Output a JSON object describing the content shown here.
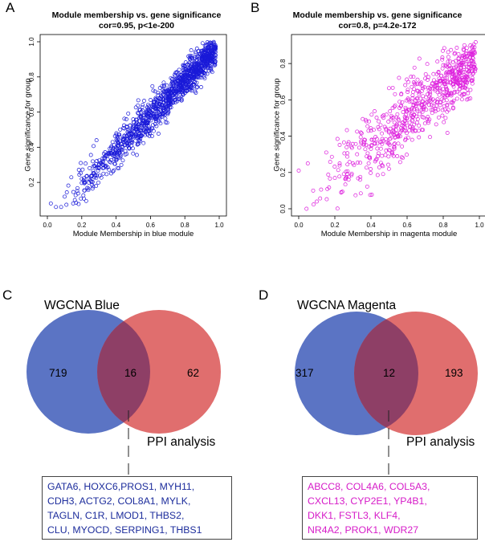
{
  "panels": {
    "a": {
      "letter": "A"
    },
    "b": {
      "letter": "B"
    },
    "c": {
      "letter": "C"
    },
    "d": {
      "letter": "D"
    }
  },
  "chart_data": [
    {
      "type": "scatter",
      "title": "Module membership vs. gene significance",
      "subtitle": "cor=0.95, p<1e-200",
      "xlabel": "Module Membership in blue module",
      "ylabel": "Gene significance for group",
      "xlim": [
        0,
        1
      ],
      "ylim": [
        0.05,
        1.0
      ],
      "xticks": [
        "0.0",
        "0.2",
        "0.4",
        "0.6",
        "0.8",
        "1.0"
      ],
      "yticks": [
        "0.2",
        "0.4",
        "0.6",
        "0.8",
        "1.0"
      ],
      "point_color": "#1a1ad8",
      "n_points": 1200,
      "seed": 7,
      "relation": {
        "slope": 1.0,
        "intercept": -0.02,
        "noise": 0.055,
        "x_min": 0.02,
        "x_max": 0.98
      },
      "sample_points": [
        {
          "x": 0.02,
          "y": 0.08
        },
        {
          "x": 0.05,
          "y": 0.06
        },
        {
          "x": 0.08,
          "y": 0.06
        },
        {
          "x": 0.15,
          "y": 0.08
        },
        {
          "x": 0.16,
          "y": 0.1
        },
        {
          "x": 0.2,
          "y": 0.22
        },
        {
          "x": 0.3,
          "y": 0.28
        },
        {
          "x": 0.4,
          "y": 0.4
        },
        {
          "x": 0.5,
          "y": 0.46
        },
        {
          "x": 0.6,
          "y": 0.58
        },
        {
          "x": 0.7,
          "y": 0.68
        },
        {
          "x": 0.8,
          "y": 0.76
        },
        {
          "x": 0.9,
          "y": 0.86
        },
        {
          "x": 0.97,
          "y": 0.96
        }
      ]
    },
    {
      "type": "scatter",
      "title": "Module membership vs. gene significance",
      "subtitle": "cor=0.8, p=4.2e-172",
      "xlabel": "Module Membership in magenta module",
      "ylabel": "Gene significance for group",
      "xlim": [
        0,
        1
      ],
      "ylim": [
        0.0,
        0.92
      ],
      "xticks": [
        "0.0",
        "0.2",
        "0.4",
        "0.6",
        "0.8",
        "1.0"
      ],
      "yticks": [
        "0.0",
        "0.2",
        "0.4",
        "0.6",
        "0.8"
      ],
      "point_color": "#dd1fdd",
      "n_points": 700,
      "seed": 19,
      "relation": {
        "slope": 0.82,
        "intercept": 0.02,
        "noise": 0.11,
        "x_min": 0.03,
        "x_max": 0.98
      },
      "sample_points": [
        {
          "x": 0.0,
          "y": 0.21
        },
        {
          "x": 0.05,
          "y": 0.25
        },
        {
          "x": 0.08,
          "y": 0.1
        },
        {
          "x": 0.1,
          "y": 0.04
        },
        {
          "x": 0.2,
          "y": 0.17
        },
        {
          "x": 0.3,
          "y": 0.25
        },
        {
          "x": 0.4,
          "y": 0.33
        },
        {
          "x": 0.5,
          "y": 0.42
        },
        {
          "x": 0.6,
          "y": 0.5
        },
        {
          "x": 0.7,
          "y": 0.58
        },
        {
          "x": 0.8,
          "y": 0.66
        },
        {
          "x": 0.9,
          "y": 0.76
        },
        {
          "x": 0.95,
          "y": 0.9
        }
      ]
    }
  ],
  "venn_c": {
    "title": "WGCNA Blue",
    "left_count": "719",
    "overlap_count": "16",
    "right_count": "62",
    "right_label": "PPI analysis",
    "gene_color": "#1d2d9c",
    "genes_lines": [
      "GATA6, HOXC6,PROS1, MYH11,",
      "CDH3, ACTG2, COL8A1, MYLK,",
      "TAGLN, C1R, LMOD1, THBS2,",
      "CLU, MYOCD, SERPING1, THBS1"
    ]
  },
  "venn_d": {
    "title": "WGCNA Magenta",
    "left_count": "317",
    "overlap_count": "12",
    "right_count": "193",
    "right_label": "PPI analysis",
    "gene_color": "#d61cc8",
    "genes_lines": [
      "ABCC8, COL4A6, COL5A3,",
      "CXCL13, CYP2E1, YP4B1,",
      "DKK1, FSTL3, KLF4,",
      "NR4A2, PROK1, WDR27"
    ]
  },
  "colors": {
    "venn_left": "#5b74c4",
    "venn_right": "#e06e6e",
    "venn_overlap": "#8e3f66"
  }
}
